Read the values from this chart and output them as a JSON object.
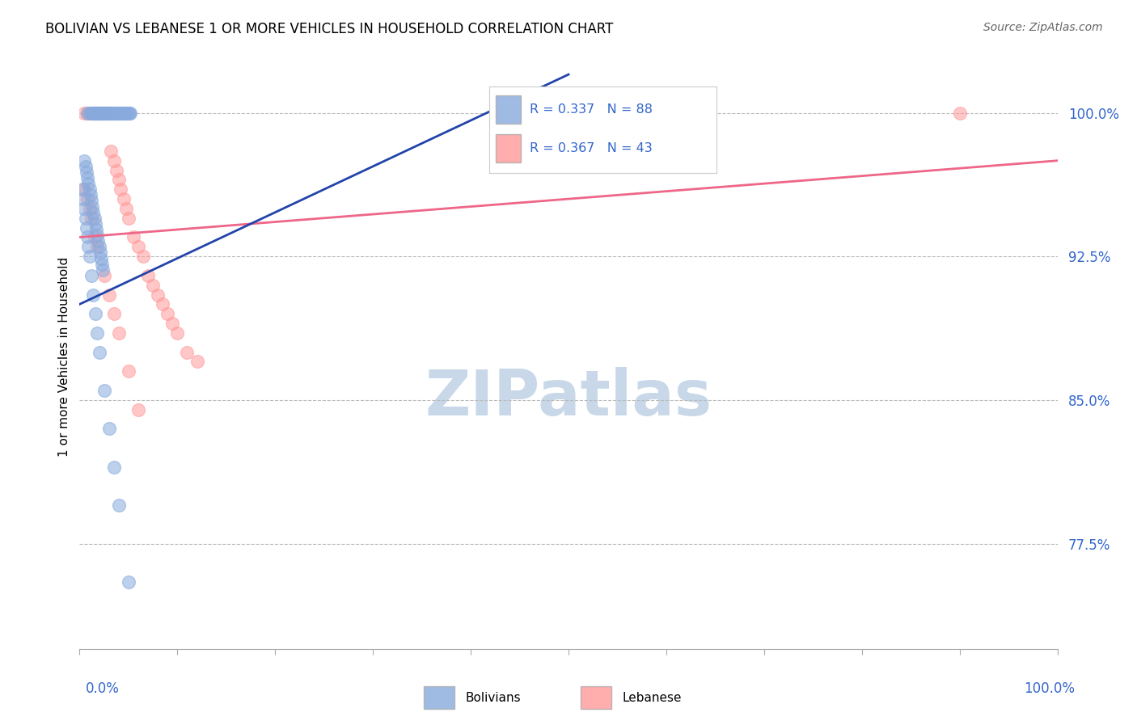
{
  "title": "BOLIVIAN VS LEBANESE 1 OR MORE VEHICLES IN HOUSEHOLD CORRELATION CHART",
  "source": "Source: ZipAtlas.com",
  "ylabel": "1 or more Vehicles in Household",
  "legend_bolivian_R": "R = 0.337",
  "legend_bolivian_N": "N = 88",
  "legend_lebanese_R": "R = 0.367",
  "legend_lebanese_N": "N = 43",
  "bolivian_color": "#88AADD",
  "lebanese_color": "#FF9999",
  "bolivian_line_color": "#2244AA",
  "lebanese_line_color": "#EE6688",
  "background_color": "#FFFFFF",
  "watermark_color": "#C8D8E8",
  "xlim": [
    0.0,
    1.0
  ],
  "ylim": [
    0.72,
    1.025
  ],
  "ytick_vals": [
    1.0,
    0.925,
    0.85,
    0.775
  ],
  "ytick_labels": [
    "100.0%",
    "92.5%",
    "85.0%",
    "77.5%"
  ],
  "xtick_label_left": "0.0%",
  "xtick_label_right": "100.0%",
  "bolivian_x": [
    0.008,
    0.01,
    0.012,
    0.013,
    0.015,
    0.015,
    0.016,
    0.016,
    0.017,
    0.018,
    0.019,
    0.02,
    0.02,
    0.021,
    0.022,
    0.022,
    0.023,
    0.024,
    0.025,
    0.026,
    0.027,
    0.028,
    0.028,
    0.029,
    0.03,
    0.031,
    0.032,
    0.032,
    0.033,
    0.034,
    0.035,
    0.036,
    0.036,
    0.037,
    0.038,
    0.039,
    0.04,
    0.04,
    0.041,
    0.042,
    0.043,
    0.044,
    0.045,
    0.045,
    0.046,
    0.047,
    0.048,
    0.05,
    0.051,
    0.052,
    0.005,
    0.006,
    0.007,
    0.008,
    0.009,
    0.01,
    0.011,
    0.012,
    0.013,
    0.014,
    0.015,
    0.016,
    0.017,
    0.018,
    0.019,
    0.02,
    0.021,
    0.022,
    0.023,
    0.024,
    0.003,
    0.004,
    0.005,
    0.006,
    0.007,
    0.008,
    0.009,
    0.01,
    0.012,
    0.014,
    0.016,
    0.018,
    0.02,
    0.025,
    0.03,
    0.035,
    0.04,
    0.05
  ],
  "bolivian_y": [
    1.0,
    1.0,
    1.0,
    1.0,
    1.0,
    1.0,
    1.0,
    1.0,
    1.0,
    1.0,
    1.0,
    1.0,
    1.0,
    1.0,
    1.0,
    1.0,
    1.0,
    1.0,
    1.0,
    1.0,
    1.0,
    1.0,
    1.0,
    1.0,
    1.0,
    1.0,
    1.0,
    1.0,
    1.0,
    1.0,
    1.0,
    1.0,
    1.0,
    1.0,
    1.0,
    1.0,
    1.0,
    1.0,
    1.0,
    1.0,
    1.0,
    1.0,
    1.0,
    1.0,
    1.0,
    1.0,
    1.0,
    1.0,
    1.0,
    1.0,
    0.975,
    0.972,
    0.969,
    0.966,
    0.963,
    0.96,
    0.957,
    0.954,
    0.951,
    0.948,
    0.945,
    0.942,
    0.939,
    0.936,
    0.933,
    0.93,
    0.927,
    0.924,
    0.921,
    0.918,
    0.96,
    0.955,
    0.95,
    0.945,
    0.94,
    0.935,
    0.93,
    0.925,
    0.915,
    0.905,
    0.895,
    0.885,
    0.875,
    0.855,
    0.835,
    0.815,
    0.795,
    0.755
  ],
  "lebanese_x": [
    0.005,
    0.008,
    0.01,
    0.012,
    0.015,
    0.018,
    0.02,
    0.025,
    0.027,
    0.028,
    0.032,
    0.035,
    0.038,
    0.04,
    0.042,
    0.045,
    0.048,
    0.05,
    0.055,
    0.06,
    0.065,
    0.07,
    0.075,
    0.08,
    0.085,
    0.09,
    0.095,
    0.1,
    0.11,
    0.12,
    0.005,
    0.008,
    0.01,
    0.012,
    0.015,
    0.018,
    0.025,
    0.03,
    0.035,
    0.04,
    0.05,
    0.06,
    0.9
  ],
  "lebanese_y": [
    1.0,
    1.0,
    1.0,
    1.0,
    1.0,
    1.0,
    1.0,
    1.0,
    1.0,
    1.0,
    0.98,
    0.975,
    0.97,
    0.965,
    0.96,
    0.955,
    0.95,
    0.945,
    0.935,
    0.93,
    0.925,
    0.915,
    0.91,
    0.905,
    0.9,
    0.895,
    0.89,
    0.885,
    0.875,
    0.87,
    0.96,
    0.955,
    0.95,
    0.945,
    0.935,
    0.93,
    0.915,
    0.905,
    0.895,
    0.885,
    0.865,
    0.845,
    1.0
  ],
  "bol_trend_x": [
    0.0,
    0.5
  ],
  "bol_trend_y": [
    0.9,
    1.02
  ],
  "leb_trend_x": [
    0.0,
    1.0
  ],
  "leb_trend_y": [
    0.935,
    0.975
  ]
}
